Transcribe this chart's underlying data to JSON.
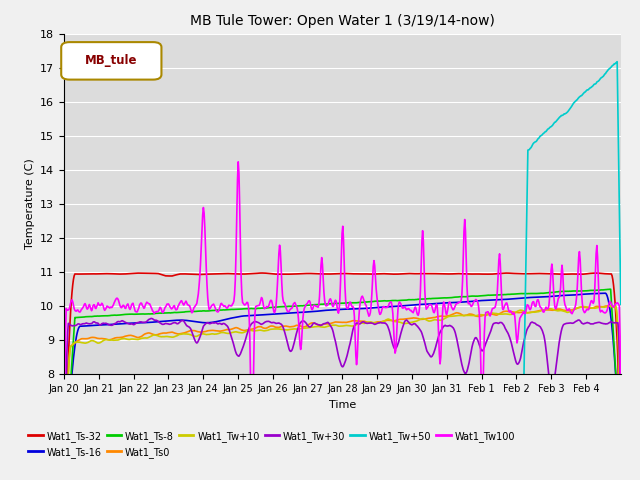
{
  "title": "MB Tule Tower: Open Water 1 (3/19/14-now)",
  "xlabel": "Time",
  "ylabel": "Temperature (C)",
  "ylim": [
    8.0,
    18.0
  ],
  "yticks": [
    8.0,
    9.0,
    10.0,
    11.0,
    12.0,
    13.0,
    14.0,
    15.0,
    16.0,
    17.0,
    18.0
  ],
  "bg_color": "#dcdcdc",
  "legend_label": "MB_tule",
  "series": [
    {
      "label": "Wat1_Ts-32",
      "color": "#dd0000",
      "linewidth": 1.2
    },
    {
      "label": "Wat1_Ts-16",
      "color": "#0000dd",
      "linewidth": 1.2
    },
    {
      "label": "Wat1_Ts-8",
      "color": "#00cc00",
      "linewidth": 1.2
    },
    {
      "label": "Wat1_Ts0",
      "color": "#ff8800",
      "linewidth": 1.2
    },
    {
      "label": "Wat1_Tw+10",
      "color": "#cccc00",
      "linewidth": 1.2
    },
    {
      "label": "Wat1_Tw+30",
      "color": "#9900cc",
      "linewidth": 1.2
    },
    {
      "label": "Wat1_Tw+50",
      "color": "#00cccc",
      "linewidth": 1.2
    },
    {
      "label": "Wat1_Tw100",
      "color": "#ff00ff",
      "linewidth": 1.2
    }
  ],
  "xtick_labels": [
    "Jan 20",
    "Jan 21",
    "Jan 22",
    "Jan 23",
    "Jan 24",
    "Jan 25",
    "Jan 26",
    "Jan 27",
    "Jan 28",
    "Jan 29",
    "Jan 30",
    "Jan 31",
    "Feb 1",
    "Feb 2",
    "Feb 3",
    "Feb 4"
  ],
  "n_days": 16,
  "figsize": [
    6.4,
    4.8
  ],
  "dpi": 100
}
